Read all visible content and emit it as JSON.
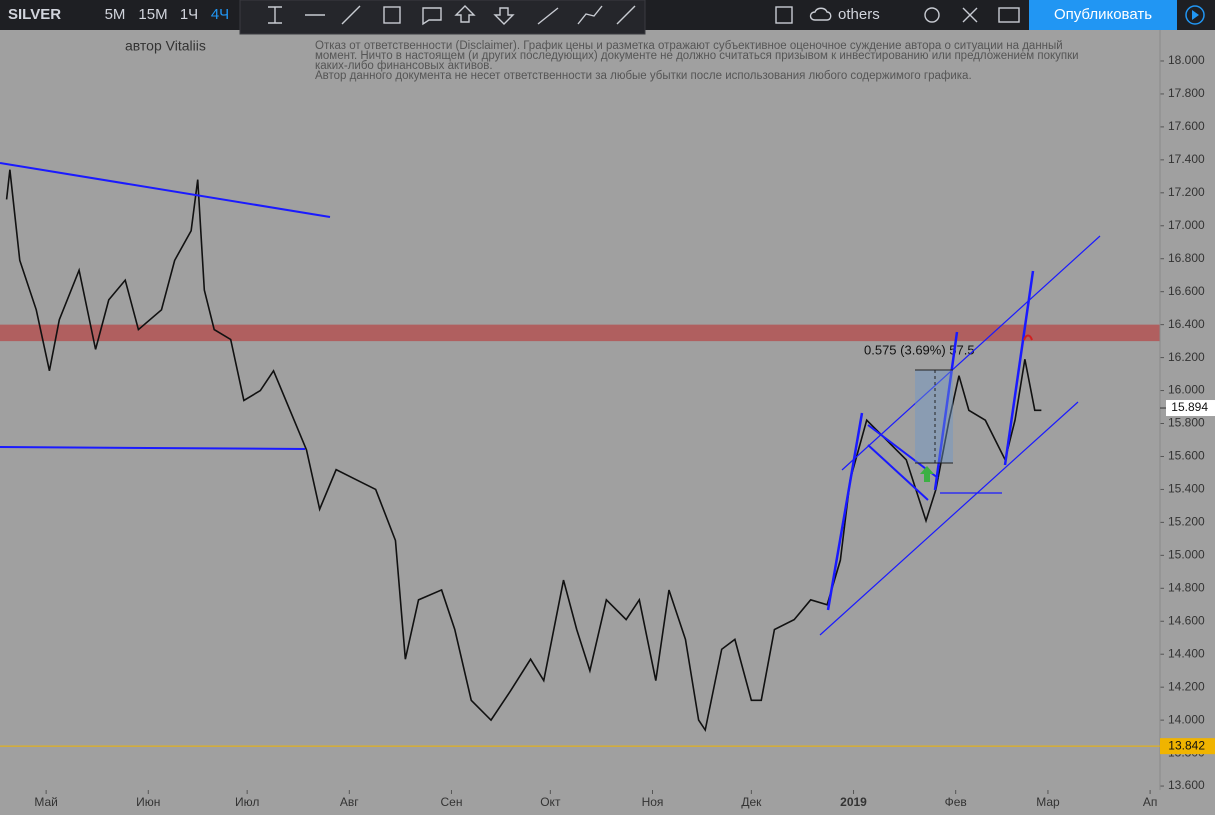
{
  "toolbar": {
    "symbol": "SILVER",
    "intervals": [
      "5M",
      "15M",
      "1Ч",
      "4Ч"
    ],
    "active_interval": 3,
    "layout_name": "others",
    "publish": "Опубликовать"
  },
  "author": "автор Vitaliis",
  "disclaimer": [
    "Отказ от ответственности (Disclaimer). График цены и разметка отражают субъективное оценочное суждение автора о ситуации на данный",
    "момент. Ничто в настоящем (и других последующих) документе не должно считаться призывом к инвестированию или предложением покупки",
    "каких-либо финансовых активов.",
    "Автор данного документа не несет ответственности за любые убытки после использования любого содержимого графика."
  ],
  "chart_data": {
    "type": "line",
    "color": "#111111",
    "series": [
      {
        "name": "SILVER",
        "color": "#111111",
        "x": [
          -12,
          -11,
          -8,
          -3,
          1,
          4,
          10,
          15,
          19,
          24,
          28,
          35,
          39,
          44,
          46,
          48,
          51,
          56,
          60,
          65,
          69,
          74,
          79,
          83,
          88,
          94,
          100,
          106,
          109,
          113,
          120,
          124,
          129,
          135,
          141,
          147,
          151,
          157,
          161,
          165,
          170,
          176,
          180,
          185,
          189,
          194,
          198,
          200,
          205,
          209,
          214,
          217,
          221,
          227,
          232,
          237,
          241,
          244,
          249,
          255,
          261,
          267,
          270,
          274,
          277,
          280,
          285,
          291,
          294,
          297,
          300,
          302
        ],
        "values": [
          17.16,
          17.34,
          16.79,
          16.49,
          16.12,
          16.43,
          16.73,
          16.25,
          16.55,
          16.67,
          16.37,
          16.49,
          16.79,
          16.97,
          17.28,
          16.61,
          16.37,
          16.31,
          15.94,
          16.0,
          16.12,
          15.88,
          15.64,
          15.28,
          15.52,
          15.46,
          15.4,
          15.09,
          14.37,
          14.73,
          14.79,
          14.55,
          14.12,
          14.0,
          14.18,
          14.37,
          14.24,
          14.85,
          14.55,
          14.3,
          14.73,
          14.61,
          14.73,
          14.24,
          14.79,
          14.49,
          14.0,
          13.94,
          14.43,
          14.49,
          14.12,
          14.12,
          14.55,
          14.61,
          14.73,
          14.7,
          14.97,
          15.46,
          15.82,
          15.7,
          15.58,
          15.21,
          15.4,
          15.82,
          16.09,
          15.88,
          15.82,
          15.58,
          15.82,
          16.19,
          15.88,
          15.88
        ]
      }
    ],
    "xlim": [
      -14,
      338
    ],
    "xticks": [
      {
        "value": 0,
        "label": "Май"
      },
      {
        "value": 31,
        "label": "Июн"
      },
      {
        "value": 61,
        "label": "Июл"
      },
      {
        "value": 92,
        "label": "Авг"
      },
      {
        "value": 123,
        "label": "Сен"
      },
      {
        "value": 153,
        "label": "Окт"
      },
      {
        "value": 184,
        "label": "Ноя"
      },
      {
        "value": 214,
        "label": "Дек"
      },
      {
        "value": 245,
        "label": "2019"
      },
      {
        "value": 276,
        "label": "Фев"
      },
      {
        "value": 304,
        "label": "Мар"
      },
      {
        "value": 335,
        "label": "Ап"
      }
    ],
    "ylim": [
      13.576,
      18.188
    ],
    "yticks": [
      {
        "value": 13.6,
        "label": "13.600"
      },
      {
        "value": 13.8,
        "label": "13.800"
      },
      {
        "value": 14,
        "label": "14.000"
      },
      {
        "value": 14.2,
        "label": "14.200"
      },
      {
        "value": 14.4,
        "label": "14.400"
      },
      {
        "value": 14.6,
        "label": "14.600"
      },
      {
        "value": 14.8,
        "label": "14.800"
      },
      {
        "value": 15,
        "label": "15.000"
      },
      {
        "value": 15.2,
        "label": "15.200"
      },
      {
        "value": 15.4,
        "label": "15.400"
      },
      {
        "value": 15.6,
        "label": "15.600"
      },
      {
        "value": 15.8,
        "label": "15.800"
      },
      {
        "value": 16,
        "label": "16.000"
      },
      {
        "value": 16.2,
        "label": "16.200"
      },
      {
        "value": 16.4,
        "label": "16.400"
      },
      {
        "value": 16.6,
        "label": "16.600"
      },
      {
        "value": 16.8,
        "label": "16.800"
      },
      {
        "value": 17,
        "label": "17.000"
      },
      {
        "value": 17.2,
        "label": "17.200"
      },
      {
        "value": 17.4,
        "label": "17.400"
      },
      {
        "value": 17.6,
        "label": "17.600"
      },
      {
        "value": 17.8,
        "label": "17.800"
      },
      {
        "value": 18,
        "label": "18.000"
      }
    ],
    "zone": [
      16.3,
      16.4
    ],
    "zone_color": "#b54a4a",
    "price_line": 13.842,
    "price_line_color": "#f0b400",
    "last_price": 15.894,
    "annotation": "0.575 (3.69%) 57.5"
  }
}
